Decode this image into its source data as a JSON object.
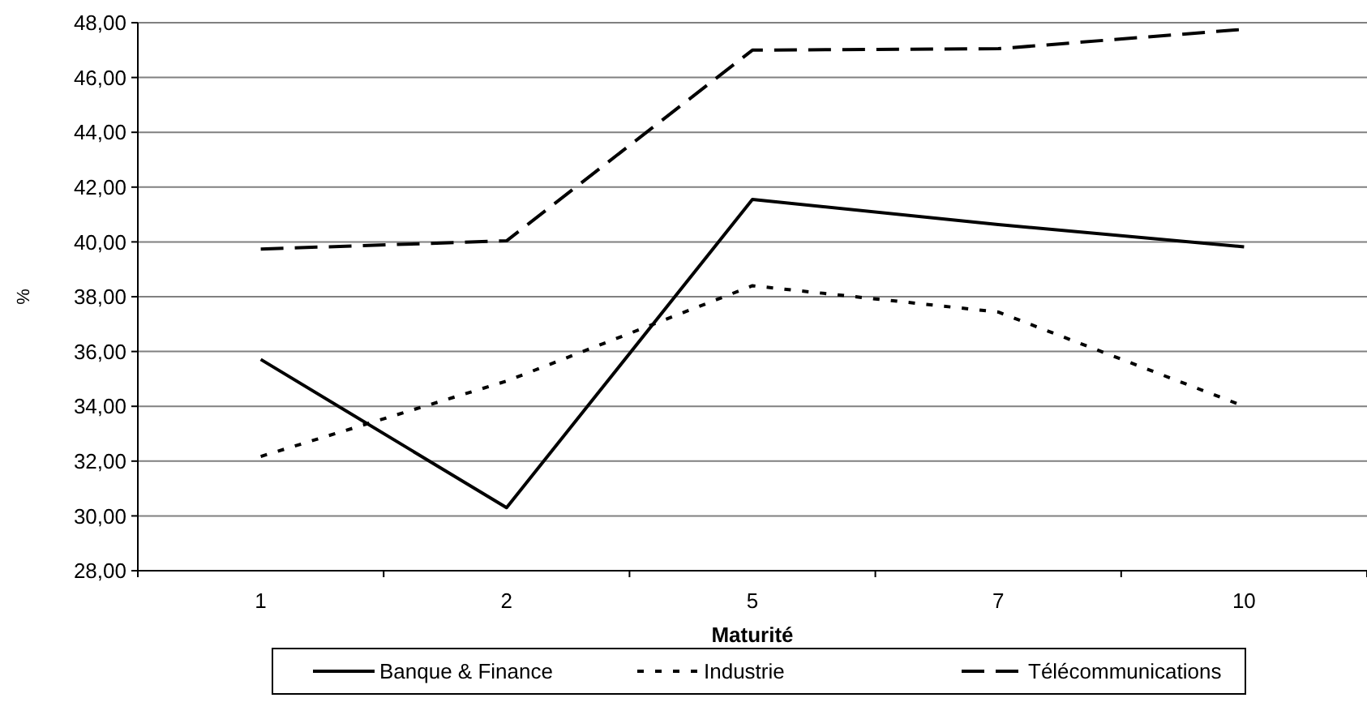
{
  "chart_data": {
    "type": "line",
    "xlabel": "Maturité",
    "ylabel": "%",
    "categories": [
      "1",
      "2",
      "5",
      "7",
      "10"
    ],
    "series": [
      {
        "name": "Banque & Finance",
        "color": "#000000",
        "line_style": "solid",
        "values": [
          35.71,
          30.3,
          41.55,
          40.63,
          39.82
        ]
      },
      {
        "name": "Industrie",
        "color": "#000000",
        "line_style": "dotted",
        "values": [
          32.17,
          34.92,
          38.4,
          37.44,
          34.0
        ]
      },
      {
        "name": "Télécommunications",
        "color": "#000000",
        "line_style": "dashed",
        "values": [
          39.74,
          40.04,
          47.0,
          47.05,
          47.76
        ]
      }
    ],
    "ylim": [
      28,
      48
    ],
    "yticks": [
      {
        "value": 28,
        "label": "28,00"
      },
      {
        "value": 30,
        "label": "30,00"
      },
      {
        "value": 32,
        "label": "32,00"
      },
      {
        "value": 34,
        "label": "34,00"
      },
      {
        "value": 36,
        "label": "36,00"
      },
      {
        "value": 38,
        "label": "38,00"
      },
      {
        "value": 40,
        "label": "40,00"
      },
      {
        "value": 42,
        "label": "42,00"
      },
      {
        "value": 44,
        "label": "44,00"
      },
      {
        "value": 46,
        "label": "46,00"
      },
      {
        "value": 48,
        "label": "48,00"
      }
    ],
    "grid": "y",
    "legend": "bottom",
    "marker": "none"
  }
}
